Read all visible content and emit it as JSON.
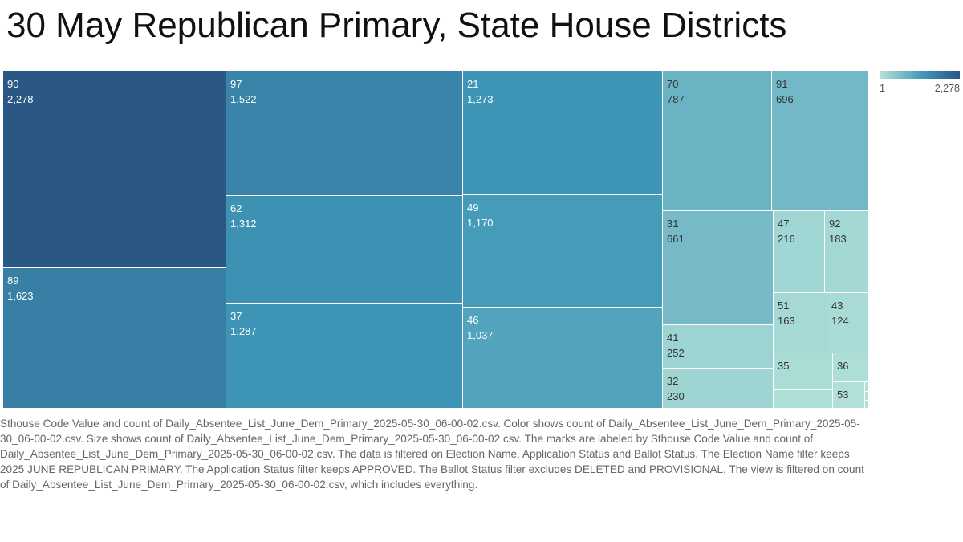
{
  "title": "30 May Republican Primary, State House Districts",
  "chart_data": {
    "type": "treemap",
    "label_field": "Sthouse Code Value",
    "value_field": "count of Daily_Absentee_List_June_Dem_Primary_2025-05-30_06-00-02.csv",
    "color_range": [
      1,
      2278
    ],
    "colors": {
      "low": "#b4e3da",
      "mid": "#3e96b6",
      "high": "#2a5783"
    },
    "nodes": [
      {
        "label": "90",
        "value": 2278,
        "value_text": "2,278"
      },
      {
        "label": "89",
        "value": 1623,
        "value_text": "1,623"
      },
      {
        "label": "97",
        "value": 1522,
        "value_text": "1,522"
      },
      {
        "label": "62",
        "value": 1312,
        "value_text": "1,312"
      },
      {
        "label": "37",
        "value": 1287,
        "value_text": "1,287"
      },
      {
        "label": "21",
        "value": 1273,
        "value_text": "1,273"
      },
      {
        "label": "49",
        "value": 1170,
        "value_text": "1,170"
      },
      {
        "label": "46",
        "value": 1037,
        "value_text": "1,037"
      },
      {
        "label": "70",
        "value": 787,
        "value_text": "787"
      },
      {
        "label": "91",
        "value": 696,
        "value_text": "696"
      },
      {
        "label": "31",
        "value": 661,
        "value_text": "661"
      },
      {
        "label": "41",
        "value": 252,
        "value_text": "252"
      },
      {
        "label": "32",
        "value": 230,
        "value_text": "230"
      },
      {
        "label": "47",
        "value": 216,
        "value_text": "216"
      },
      {
        "label": "92",
        "value": 183,
        "value_text": "183"
      },
      {
        "label": "51",
        "value": 163,
        "value_text": "163"
      },
      {
        "label": "43",
        "value": 124,
        "value_text": "124"
      },
      {
        "label": "35",
        "value": 95,
        "value_text": ""
      },
      {
        "label": "36",
        "value": 70,
        "value_text": ""
      },
      {
        "label": "",
        "value": 55,
        "value_text": ""
      },
      {
        "label": "53",
        "value": 45,
        "value_text": ""
      },
      {
        "label": "",
        "value": 3,
        "value_text": ""
      },
      {
        "label": "",
        "value": 2,
        "value_text": ""
      },
      {
        "label": "",
        "value": 1,
        "value_text": ""
      }
    ]
  },
  "legend": {
    "min_label": "1",
    "max_label": "2,278"
  },
  "caption": "Sthouse Code Value and count of Daily_Absentee_List_June_Dem_Primary_2025-05-30_06-00-02.csv.  Color shows count of Daily_Absentee_List_June_Dem_Primary_2025-05-30_06-00-02.csv.  Size shows count of Daily_Absentee_List_June_Dem_Primary_2025-05-30_06-00-02.csv.  The marks are labeled by Sthouse Code Value and count of Daily_Absentee_List_June_Dem_Primary_2025-05-30_06-00-02.csv. The data is filtered on Election Name, Application Status and Ballot Status. The Election Name filter keeps 2025 JUNE REPUBLICAN PRIMARY. The Application Status filter keeps APPROVED. The Ballot Status filter excludes DELETED and PROVISIONAL. The view is filtered on count of Daily_Absentee_List_June_Dem_Primary_2025-05-30_06-00-02.csv, which includes everything."
}
